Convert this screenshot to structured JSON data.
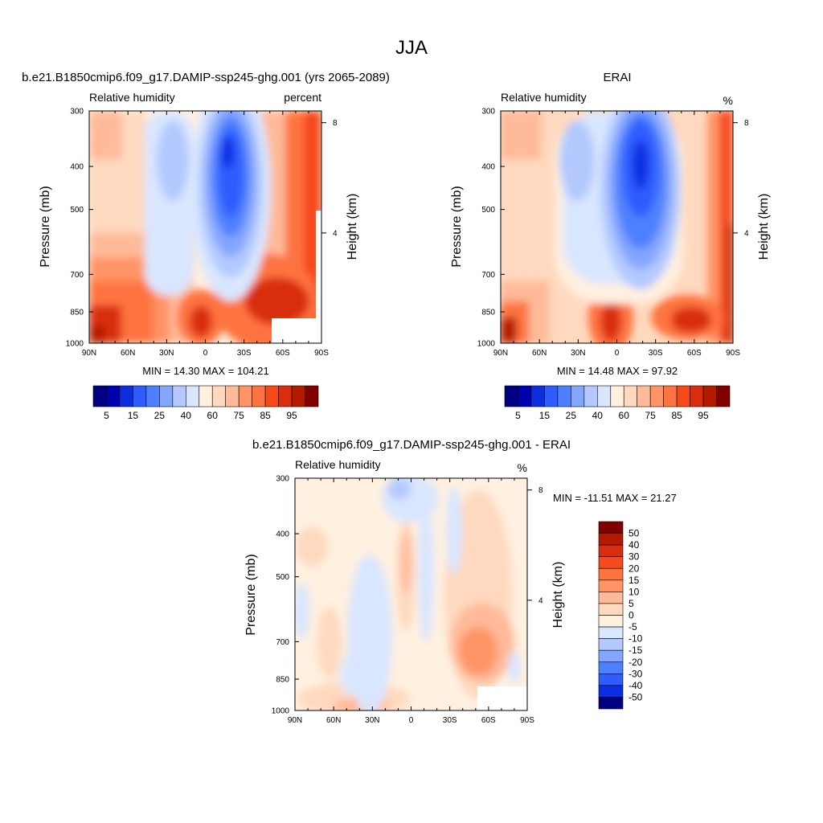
{
  "page": {
    "title": "JJA"
  },
  "chart_data": [
    {
      "type": "heatmap",
      "id": "model",
      "case_title": "b.e21.B1850cmip6.f09_g17.DAMIP-ssp245-ghg.001 (yrs 2065-2089)",
      "left_string": "Relative humidity",
      "right_string": "percent",
      "ylabel": "Pressure (mb)",
      "ylabel_right": "Height (km)",
      "x_ticks": [
        "90N",
        "60N",
        "30N",
        "0",
        "30S",
        "60S",
        "90S"
      ],
      "y_ticks": [
        "300",
        "400",
        "500",
        "700",
        "850",
        "1000"
      ],
      "y_tick_values": [
        300,
        400,
        500,
        700,
        850,
        1000
      ],
      "height_ticks": [
        "8",
        "4"
      ],
      "height_tick_values": [
        8,
        4
      ],
      "x_range": [
        90,
        -90
      ],
      "y_range": [
        1000,
        300
      ],
      "y_scale": "log",
      "min_max": "MIN =  14.30  MAX = 104.21",
      "min": 14.3,
      "max": 104.21,
      "colorbar_labels": [
        "5",
        "15",
        "25",
        "40",
        "60",
        "75",
        "85",
        "95"
      ],
      "colorbar_levels": [
        5,
        10,
        15,
        20,
        25,
        30,
        40,
        50,
        60,
        65,
        70,
        75,
        80,
        85,
        90,
        95
      ],
      "colors": [
        "#000080",
        "#0000b3",
        "#0d2ee0",
        "#2e5cff",
        "#4d80ff",
        "#85a6ff",
        "#b3c9ff",
        "#d9e6ff",
        "#fff0e0",
        "#ffd9bf",
        "#ffba99",
        "#ff9466",
        "#ff7340",
        "#f54a1a",
        "#d92d0d",
        "#b31a00",
        "#800000"
      ],
      "xlabel": "",
      "grid": false
    },
    {
      "type": "heatmap",
      "id": "obs",
      "case_title": "ERAI",
      "left_string": "Relative humidity",
      "right_string": "%",
      "ylabel": "Pressure (mb)",
      "ylabel_right": "Height (km)",
      "x_ticks": [
        "90N",
        "60N",
        "30N",
        "0",
        "30S",
        "60S",
        "90S"
      ],
      "y_ticks": [
        "300",
        "400",
        "500",
        "700",
        "850",
        "1000"
      ],
      "y_tick_values": [
        300,
        400,
        500,
        700,
        850,
        1000
      ],
      "height_ticks": [
        "8",
        "4"
      ],
      "height_tick_values": [
        8,
        4
      ],
      "x_range": [
        90,
        -90
      ],
      "y_range": [
        1000,
        300
      ],
      "y_scale": "log",
      "min_max": "MIN =  14.48  MAX =  97.92",
      "min": 14.48,
      "max": 97.92,
      "colorbar_labels": [
        "5",
        "15",
        "25",
        "40",
        "60",
        "75",
        "85",
        "95"
      ],
      "colorbar_levels": [
        5,
        10,
        15,
        20,
        25,
        30,
        40,
        50,
        60,
        65,
        70,
        75,
        80,
        85,
        90,
        95
      ],
      "colors": [
        "#000080",
        "#0000b3",
        "#0d2ee0",
        "#2e5cff",
        "#4d80ff",
        "#85a6ff",
        "#b3c9ff",
        "#d9e6ff",
        "#fff0e0",
        "#ffd9bf",
        "#ffba99",
        "#ff9466",
        "#ff7340",
        "#f54a1a",
        "#d92d0d",
        "#b31a00",
        "#800000"
      ],
      "xlabel": "",
      "grid": false
    },
    {
      "type": "heatmap",
      "id": "diff",
      "case_title": "b.e21.B1850cmip6.f09_g17.DAMIP-ssp245-ghg.001 - ERAI",
      "left_string": "Relative humidity",
      "right_string": "%",
      "ylabel": "Pressure (mb)",
      "ylabel_right": "Height (km)",
      "x_ticks": [
        "90N",
        "60N",
        "30N",
        "0",
        "30S",
        "60S",
        "90S"
      ],
      "y_ticks": [
        "300",
        "400",
        "500",
        "700",
        "850",
        "1000"
      ],
      "y_tick_values": [
        300,
        400,
        500,
        700,
        850,
        1000
      ],
      "height_ticks": [
        "8",
        "4"
      ],
      "height_tick_values": [
        8,
        4
      ],
      "x_range": [
        90,
        -90
      ],
      "y_range": [
        1000,
        300
      ],
      "y_scale": "log",
      "min_max": "MIN = -11.51  MAX =  21.27",
      "min": -11.51,
      "max": 21.27,
      "colorbar_labels": [
        "50",
        "40",
        "30",
        "20",
        "15",
        "10",
        "5",
        "0",
        "-5",
        "-10",
        "-15",
        "-20",
        "-30",
        "-40",
        "-50"
      ],
      "colorbar_levels": [
        50,
        40,
        30,
        20,
        15,
        10,
        5,
        0,
        -5,
        -10,
        -15,
        -20,
        -30,
        -40,
        -50
      ],
      "colors": [
        "#800000",
        "#b31a00",
        "#d92d0d",
        "#f54a1a",
        "#ff7340",
        "#ff9466",
        "#ffba99",
        "#ffd9bf",
        "#fff0e0",
        "#d9e6ff",
        "#b3c9ff",
        "#85a6ff",
        "#4d80ff",
        "#2e5cff",
        "#0d2ee0",
        "#000080"
      ],
      "xlabel": "",
      "grid": false
    }
  ]
}
